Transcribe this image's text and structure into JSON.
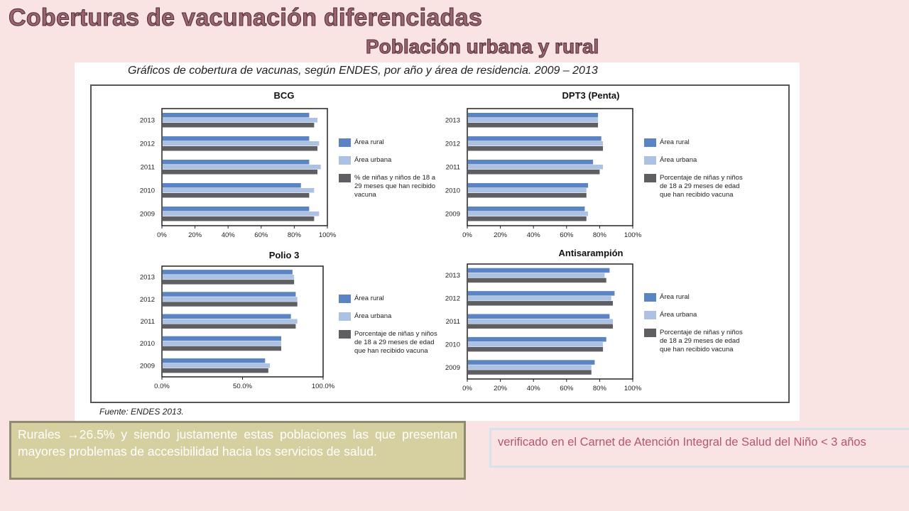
{
  "slide": {
    "title": "Coberturas de vacunación diferenciadas",
    "subtitle": "Población urbana y rural"
  },
  "figure": {
    "caption": "Gráficos de cobertura de vacunas, según ENDES, por año y área de residencia. 2009 – 2013",
    "source": "Fuente: ENDES 2013."
  },
  "notes": {
    "left": "Rurales →26.5% y siendo justamente estas poblaciones las que presentan mayores problemas de accesibilidad hacia los servicios de salud.",
    "right": "verificado en el Carnet de Atención Integral de Salud del Niño < 3 años"
  },
  "colors": {
    "rural": "#5b84c4",
    "urbana": "#adc2e2",
    "total": "#5f5f63"
  },
  "chart_data": [
    {
      "type": "bar",
      "title": "BCG",
      "categories": [
        "2013",
        "2012",
        "2011",
        "2010",
        "2009"
      ],
      "xlim": [
        0,
        100
      ],
      "ticks": [
        "0%",
        "20%",
        "40%",
        "60%",
        "80%",
        "100%"
      ],
      "grid": false,
      "legend_position": "right",
      "series": [
        {
          "name": "Área rural",
          "values": [
            89,
            89,
            89,
            84,
            89
          ]
        },
        {
          "name": "Área urbana",
          "values": [
            94,
            95,
            96,
            92,
            95
          ]
        },
        {
          "name": "% de niñas y niños de 18 a 29 meses que han recibido vacuna",
          "values": [
            92,
            94,
            94,
            89,
            92
          ]
        }
      ]
    },
    {
      "type": "bar",
      "title": "DPT3 (Penta)",
      "categories": [
        "2013",
        "2012",
        "2011",
        "2010",
        "2009"
      ],
      "xlim": [
        0,
        100
      ],
      "ticks": [
        "0%",
        "20%",
        "40%",
        "60%",
        "80%",
        "100%"
      ],
      "grid": false,
      "legend_position": "right",
      "series": [
        {
          "name": "Área rural",
          "values": [
            79,
            81,
            76,
            73,
            71
          ]
        },
        {
          "name": "Área urbana",
          "values": [
            79,
            82,
            82,
            72,
            73
          ]
        },
        {
          "name": "Porcentaje de niñas y niños de 18 a 29 meses de edad que han recibido vacuna",
          "values": [
            79,
            82,
            80,
            72,
            72
          ]
        }
      ]
    },
    {
      "type": "bar",
      "title": "Polio 3",
      "categories": [
        "2013",
        "2012",
        "2011",
        "2010",
        "2009"
      ],
      "xlim": [
        0,
        100
      ],
      "ticks": [
        "0.0%",
        "50.0%",
        "100.0%"
      ],
      "grid": false,
      "legend_position": "right",
      "series": [
        {
          "name": "Área rural",
          "values": [
            81,
            83,
            80,
            74,
            64
          ]
        },
        {
          "name": "Área urbana",
          "values": [
            82,
            84,
            84,
            74,
            67
          ]
        },
        {
          "name": "Porcentaje de niñas y niños de 18 a 29 meses de edad que han recibido vacuna",
          "values": [
            82,
            84,
            83,
            74,
            66
          ]
        }
      ]
    },
    {
      "type": "bar",
      "title": "Antisarampión",
      "categories": [
        "2013",
        "2012",
        "2011",
        "2010",
        "2009"
      ],
      "xlim": [
        0,
        100
      ],
      "ticks": [
        "0%",
        "20%",
        "40%",
        "60%",
        "80%",
        "100%"
      ],
      "grid": false,
      "legend_position": "right",
      "series": [
        {
          "name": "Área rural",
          "values": [
            86,
            89,
            86,
            84,
            77
          ]
        },
        {
          "name": "Área urbana",
          "values": [
            83,
            87,
            88,
            82,
            75
          ]
        },
        {
          "name": "Porcentaje de niñas y niños de 18 a 29 meses de edad que han recibido vacuna",
          "values": [
            84,
            88,
            88,
            82,
            75
          ]
        }
      ]
    }
  ]
}
